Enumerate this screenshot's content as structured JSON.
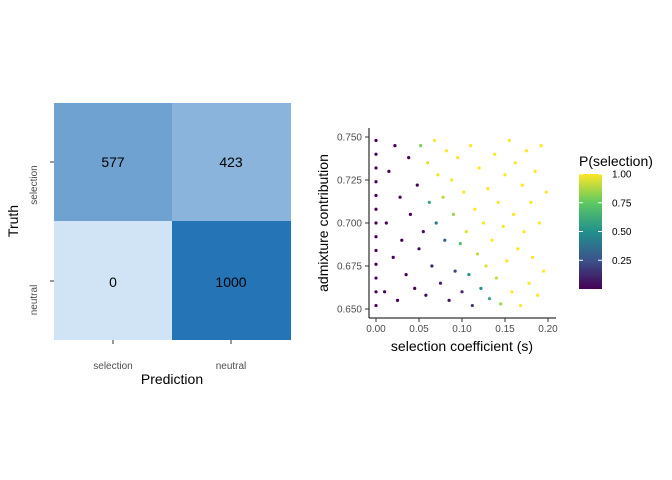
{
  "chart_data": [
    {
      "type": "heatmap",
      "xlabel": "Prediction",
      "ylabel": "Truth",
      "x_categories": [
        "selection",
        "neutral"
      ],
      "y_categories": [
        "selection",
        "neutral"
      ],
      "cells": [
        {
          "truth": "selection",
          "prediction": "selection",
          "value": 577,
          "label": "577",
          "color": "#6fa1d1"
        },
        {
          "truth": "selection",
          "prediction": "neutral",
          "value": 423,
          "label": "423",
          "color": "#8ab4dc"
        },
        {
          "truth": "neutral",
          "prediction": "selection",
          "value": 0,
          "label": "0",
          "color": "#d0e4f5"
        },
        {
          "truth": "neutral",
          "prediction": "neutral",
          "value": 1000,
          "label": "1000",
          "color": "#2474b6"
        }
      ]
    },
    {
      "type": "scatter",
      "xlabel": "selection coefficient (s)",
      "ylabel": "admixture contribution",
      "xlim": [
        0,
        0.2
      ],
      "ylim": [
        0.65,
        0.75
      ],
      "x_ticks": [
        0.0,
        0.05,
        0.1,
        0.15,
        0.2
      ],
      "x_tick_labels": [
        "0.00",
        "0.05",
        "0.10",
        "0.15",
        "0.20"
      ],
      "y_ticks": [
        0.65,
        0.675,
        0.7,
        0.725,
        0.75
      ],
      "y_tick_labels": [
        "0.650",
        "0.675",
        "0.700",
        "0.725",
        "0.750"
      ],
      "color_scale": "viridis",
      "legend": {
        "title": "P(selection)",
        "position": "right",
        "ticks": [
          0.25,
          0.5,
          0.75,
          1.0
        ],
        "tick_labels": [
          "0.25",
          "0.50",
          "0.75",
          "1.00"
        ],
        "range": [
          0,
          1
        ]
      },
      "points": [
        [
          0.0,
          0.652,
          0.0
        ],
        [
          0.0,
          0.66,
          0.0
        ],
        [
          0.0,
          0.668,
          0.0
        ],
        [
          0.0,
          0.676,
          0.0
        ],
        [
          0.0,
          0.684,
          0.0
        ],
        [
          0.0,
          0.692,
          0.0
        ],
        [
          0.0,
          0.7,
          0.0
        ],
        [
          0.0,
          0.708,
          0.0
        ],
        [
          0.0,
          0.716,
          0.0
        ],
        [
          0.0,
          0.724,
          0.0
        ],
        [
          0.0,
          0.732,
          0.0
        ],
        [
          0.0,
          0.74,
          0.0
        ],
        [
          0.0,
          0.748,
          0.0
        ],
        [
          0.01,
          0.66,
          0.0
        ],
        [
          0.012,
          0.7,
          0.0
        ],
        [
          0.015,
          0.73,
          0.0
        ],
        [
          0.02,
          0.68,
          0.0
        ],
        [
          0.022,
          0.745,
          0.0
        ],
        [
          0.025,
          0.655,
          0.0
        ],
        [
          0.028,
          0.715,
          0.0
        ],
        [
          0.03,
          0.69,
          0.0
        ],
        [
          0.035,
          0.67,
          0.0
        ],
        [
          0.038,
          0.738,
          0.0
        ],
        [
          0.04,
          0.705,
          0.0
        ],
        [
          0.045,
          0.662,
          0.0
        ],
        [
          0.048,
          0.722,
          0.01
        ],
        [
          0.05,
          0.685,
          0.02
        ],
        [
          0.052,
          0.745,
          0.8
        ],
        [
          0.055,
          0.695,
          0.05
        ],
        [
          0.058,
          0.658,
          0.03
        ],
        [
          0.06,
          0.735,
          0.95
        ],
        [
          0.062,
          0.712,
          0.6
        ],
        [
          0.065,
          0.675,
          0.1
        ],
        [
          0.068,
          0.748,
          1.0
        ],
        [
          0.07,
          0.7,
          0.4
        ],
        [
          0.072,
          0.728,
          0.98
        ],
        [
          0.075,
          0.665,
          0.1
        ],
        [
          0.078,
          0.715,
          0.9
        ],
        [
          0.08,
          0.69,
          0.3
        ],
        [
          0.082,
          0.742,
          1.0
        ],
        [
          0.085,
          0.655,
          0.05
        ],
        [
          0.088,
          0.725,
          1.0
        ],
        [
          0.09,
          0.705,
          0.85
        ],
        [
          0.092,
          0.672,
          0.2
        ],
        [
          0.095,
          0.738,
          1.0
        ],
        [
          0.098,
          0.688,
          0.7
        ],
        [
          0.1,
          0.66,
          0.1
        ],
        [
          0.102,
          0.718,
          1.0
        ],
        [
          0.105,
          0.695,
          0.95
        ],
        [
          0.108,
          0.67,
          0.5
        ],
        [
          0.11,
          0.745,
          1.0
        ],
        [
          0.112,
          0.652,
          0.15
        ],
        [
          0.115,
          0.708,
          1.0
        ],
        [
          0.118,
          0.682,
          0.9
        ],
        [
          0.12,
          0.732,
          1.0
        ],
        [
          0.122,
          0.662,
          0.5
        ],
        [
          0.125,
          0.7,
          1.0
        ],
        [
          0.128,
          0.675,
          0.95
        ],
        [
          0.13,
          0.72,
          1.0
        ],
        [
          0.132,
          0.656,
          0.6
        ],
        [
          0.135,
          0.69,
          1.0
        ],
        [
          0.138,
          0.74,
          1.0
        ],
        [
          0.14,
          0.668,
          0.9
        ],
        [
          0.142,
          0.712,
          1.0
        ],
        [
          0.145,
          0.653,
          0.85
        ],
        [
          0.148,
          0.698,
          1.0
        ],
        [
          0.15,
          0.728,
          1.0
        ],
        [
          0.152,
          0.678,
          1.0
        ],
        [
          0.155,
          0.748,
          1.0
        ],
        [
          0.158,
          0.66,
          1.0
        ],
        [
          0.16,
          0.705,
          1.0
        ],
        [
          0.162,
          0.735,
          1.0
        ],
        [
          0.165,
          0.685,
          1.0
        ],
        [
          0.168,
          0.652,
          1.0
        ],
        [
          0.17,
          0.722,
          1.0
        ],
        [
          0.172,
          0.695,
          1.0
        ],
        [
          0.175,
          0.742,
          1.0
        ],
        [
          0.178,
          0.665,
          1.0
        ],
        [
          0.18,
          0.712,
          1.0
        ],
        [
          0.182,
          0.68,
          1.0
        ],
        [
          0.185,
          0.73,
          1.0
        ],
        [
          0.188,
          0.658,
          1.0
        ],
        [
          0.19,
          0.7,
          1.0
        ],
        [
          0.192,
          0.745,
          1.0
        ],
        [
          0.195,
          0.672,
          1.0
        ],
        [
          0.198,
          0.718,
          1.0
        ]
      ]
    }
  ]
}
